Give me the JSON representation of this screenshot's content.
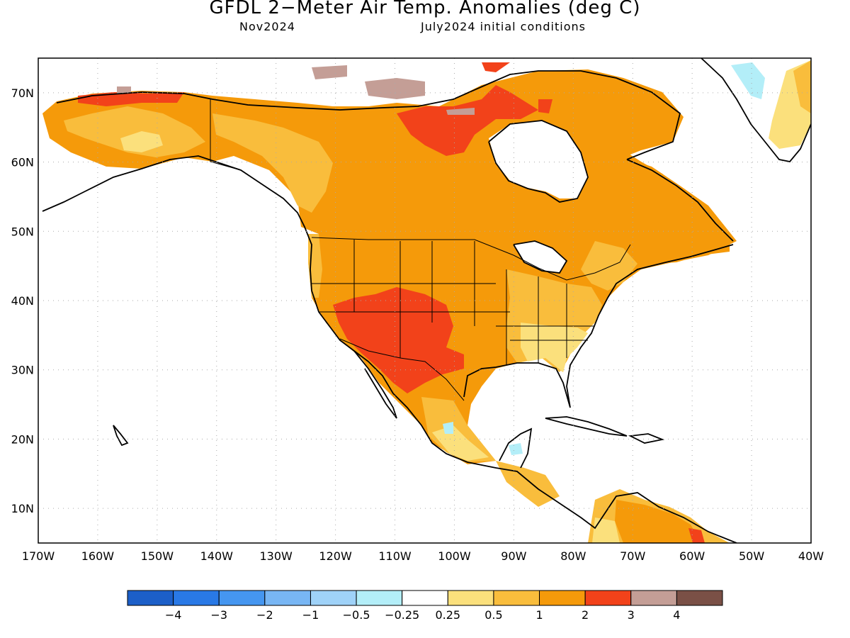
{
  "title": "GFDL 2−Meter Air Temp. Anomalies (deg C)",
  "subtitle_left": "Nov2024",
  "subtitle_right": "July2024 initial conditions",
  "map": {
    "lon_range": [
      -170,
      -40
    ],
    "lat_range": [
      5,
      75
    ],
    "lat_labels": [
      "10N",
      "20N",
      "30N",
      "40N",
      "50N",
      "60N",
      "70N"
    ],
    "lon_labels": [
      "170W",
      "160W",
      "150W",
      "140W",
      "130W",
      "120W",
      "110W",
      "100W",
      "90W",
      "80W",
      "70W",
      "60W",
      "50W",
      "40W"
    ],
    "gridlines": true
  },
  "legend": {
    "colors": [
      "#1c5fc8",
      "#2979e6",
      "#4596f0",
      "#78b6f4",
      "#9fd2f8",
      "#b3eef8",
      "#ffffff",
      "#fbe07c",
      "#f9bd3c",
      "#f59a0a",
      "#f2421a",
      "#c49e96",
      "#7a5046"
    ],
    "labels": [
      "−4",
      "−3",
      "−2",
      "−1",
      "−0.5",
      "−0.25",
      "0.25",
      "0.5",
      "1",
      "2",
      "3",
      "4"
    ]
  },
  "palette": {
    "land_outline": "#000000",
    "band_0_25_0_5": "#fbe07c",
    "band_0_5_1": "#f9bd3c",
    "band_1_2": "#f59a0a",
    "band_2_3": "#f2421a",
    "band_3_4": "#c49e96",
    "band_neg": "#b3eef8"
  }
}
